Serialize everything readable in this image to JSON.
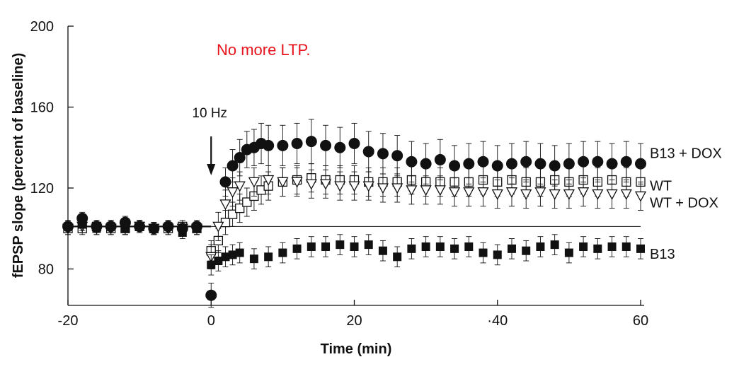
{
  "chart_data": {
    "type": "scatter",
    "title": "",
    "headline": "No more LTP.",
    "headline_color": "#e8141c",
    "xlabel": "Time (min)",
    "ylabel": "fEPSP slope (percent of baseline)",
    "xlim": [
      -20,
      60
    ],
    "ylim": [
      50,
      200
    ],
    "xticks": [
      -20,
      0,
      20,
      40,
      60
    ],
    "xtick_labels": [
      "-20",
      "0",
      "20",
      "·40",
      "60"
    ],
    "yticks": [
      80,
      120,
      160,
      200
    ],
    "ytick_labels": [
      "80",
      "120",
      "160",
      "200"
    ],
    "grid": false,
    "legend": "inline labels at right end of each series",
    "baseline_y": 101,
    "annotation": {
      "label": "10 Hz",
      "x": 0
    },
    "series": [
      {
        "name": "B13 + DOX",
        "marker": "filled-circle",
        "x": [
          -20,
          -18,
          -16,
          -14,
          -12,
          -10,
          -8,
          -6,
          -4,
          -2,
          0,
          2,
          3,
          4,
          5,
          6,
          7,
          8,
          10,
          12,
          14,
          16,
          18,
          20,
          22,
          24,
          26,
          28,
          30,
          32,
          34,
          36,
          38,
          40,
          42,
          44,
          46,
          48,
          50,
          52,
          54,
          56,
          58,
          60
        ],
        "y": [
          101,
          105,
          101,
          101,
          103,
          101,
          100,
          101,
          100,
          101,
          67,
          123,
          131,
          135,
          139,
          140,
          142,
          141,
          141,
          142,
          143,
          141,
          140,
          142,
          138,
          137,
          136,
          133,
          132,
          134,
          131,
          132,
          133,
          131,
          132,
          133,
          132,
          131,
          132,
          133,
          133,
          132,
          133,
          132
        ],
        "err": [
          3,
          3,
          3,
          3,
          3,
          3,
          3,
          3,
          3,
          3,
          6,
          7,
          8,
          9,
          9,
          9,
          10,
          10,
          10,
          10,
          11,
          10,
          10,
          10,
          10,
          10,
          10,
          10,
          10,
          10,
          10,
          10,
          10,
          10,
          10,
          10,
          10,
          10,
          10,
          10,
          10,
          10,
          10,
          10
        ]
      },
      {
        "name": "WT",
        "marker": "open-square",
        "x": [
          -20,
          -18,
          -16,
          -14,
          -12,
          -10,
          -8,
          -6,
          -4,
          -2,
          0,
          1,
          2,
          3,
          4,
          5,
          6,
          7,
          8,
          10,
          12,
          14,
          16,
          18,
          20,
          22,
          24,
          26,
          28,
          30,
          32,
          34,
          36,
          38,
          40,
          42,
          44,
          46,
          48,
          50,
          52,
          54,
          56,
          58,
          60
        ],
        "y": [
          100,
          100,
          101,
          100,
          100,
          101,
          100,
          100,
          101,
          100,
          89,
          94,
          103,
          107,
          110,
          113,
          116,
          119,
          121,
          123,
          124,
          125,
          124,
          124,
          124,
          123,
          123,
          123,
          124,
          123,
          123,
          123,
          123,
          124,
          123,
          124,
          123,
          123,
          124,
          123,
          124,
          123,
          124,
          123,
          123
        ],
        "err": [
          3,
          3,
          3,
          3,
          3,
          3,
          3,
          3,
          3,
          3,
          5,
          6,
          6,
          6,
          7,
          7,
          7,
          7,
          7,
          7,
          7,
          7,
          7,
          7,
          7,
          7,
          7,
          7,
          7,
          7,
          7,
          7,
          7,
          7,
          7,
          7,
          7,
          7,
          7,
          7,
          7,
          7,
          7,
          7,
          7
        ]
      },
      {
        "name": "WT + DOX",
        "marker": "open-triangle-down",
        "x": [
          -20,
          -18,
          -16,
          -14,
          -12,
          -10,
          -8,
          -6,
          -4,
          -2,
          0,
          1,
          2,
          3,
          4,
          6,
          8,
          10,
          12,
          14,
          16,
          18,
          20,
          22,
          24,
          26,
          28,
          30,
          32,
          34,
          36,
          38,
          40,
          42,
          44,
          46,
          48,
          50,
          52,
          54,
          56,
          58,
          60
        ],
        "y": [
          100,
          101,
          100,
          100,
          100,
          101,
          100,
          100,
          100,
          100,
          86,
          101,
          112,
          118,
          121,
          123,
          124,
          123,
          123,
          122,
          122,
          121,
          121,
          121,
          120,
          120,
          119,
          119,
          119,
          118,
          118,
          118,
          117,
          118,
          117,
          118,
          117,
          117,
          118,
          117,
          117,
          117,
          116
        ],
        "err": [
          3,
          3,
          3,
          3,
          3,
          3,
          3,
          3,
          3,
          3,
          6,
          7,
          7,
          7,
          7,
          7,
          7,
          7,
          7,
          7,
          7,
          7,
          7,
          7,
          7,
          7,
          7,
          7,
          7,
          7,
          7,
          7,
          7,
          7,
          7,
          7,
          7,
          7,
          7,
          7,
          7,
          7,
          7
        ]
      },
      {
        "name": "B13",
        "marker": "filled-square",
        "x": [
          -20,
          -18,
          -16,
          -14,
          -12,
          -10,
          -8,
          -6,
          -4,
          -2,
          0,
          1,
          2,
          3,
          4,
          6,
          8,
          10,
          12,
          14,
          16,
          18,
          20,
          22,
          24,
          26,
          28,
          30,
          32,
          34,
          36,
          38,
          40,
          42,
          44,
          46,
          48,
          50,
          52,
          54,
          56,
          58,
          60
        ],
        "y": [
          101,
          102,
          100,
          101,
          100,
          101,
          100,
          101,
          98,
          100,
          82,
          84,
          86,
          87,
          88,
          85,
          86,
          88,
          90,
          91,
          91,
          92,
          91,
          92,
          89,
          86,
          90,
          91,
          91,
          90,
          91,
          88,
          87,
          90,
          89,
          91,
          92,
          88,
          91,
          90,
          91,
          91,
          90
        ],
        "err": [
          3,
          3,
          3,
          3,
          3,
          3,
          3,
          3,
          3,
          3,
          5,
          5,
          5,
          5,
          5,
          5,
          5,
          5,
          5,
          5,
          5,
          5,
          5,
          5,
          5,
          5,
          5,
          5,
          5,
          5,
          5,
          5,
          5,
          5,
          5,
          5,
          5,
          5,
          5,
          5,
          5,
          5,
          5
        ]
      }
    ]
  }
}
